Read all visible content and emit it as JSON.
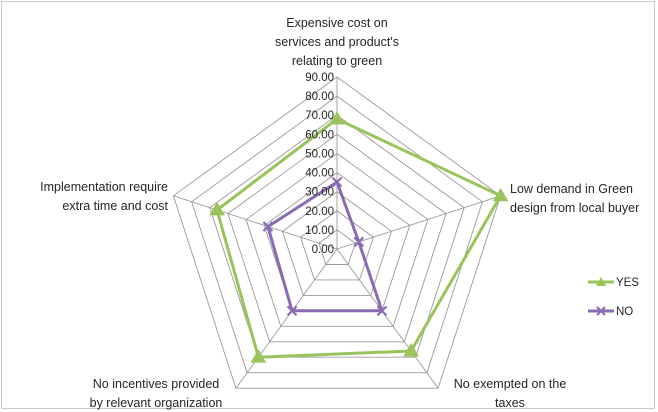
{
  "chart_data": {
    "type": "radar",
    "axes": [
      [
        "Expensive cost on",
        "services and product's",
        "relating to green"
      ],
      [
        "Low demand in Green",
        "design from local buyer"
      ],
      [
        "No exempted on the",
        "taxes"
      ],
      [
        "No incentives provided",
        "by relevant organization"
      ],
      [
        "Implementation require",
        "extra time and cost"
      ]
    ],
    "ticks": [
      "0.00",
      "10.00",
      "20.00",
      "30.00",
      "40.00",
      "50.00",
      "60.00",
      "70.00",
      "80.00",
      "90.00"
    ],
    "rlim": [
      0,
      90
    ],
    "series": [
      {
        "name": "YES",
        "values": [
          68,
          90,
          66,
          70,
          66
        ],
        "color": "#9bc35c",
        "marker": "triangle"
      },
      {
        "name": "NO",
        "values": [
          35,
          12,
          40,
          40,
          38
        ],
        "color": "#8a6bb3",
        "marker": "x"
      }
    ],
    "legend_position": "right",
    "grid": true
  }
}
